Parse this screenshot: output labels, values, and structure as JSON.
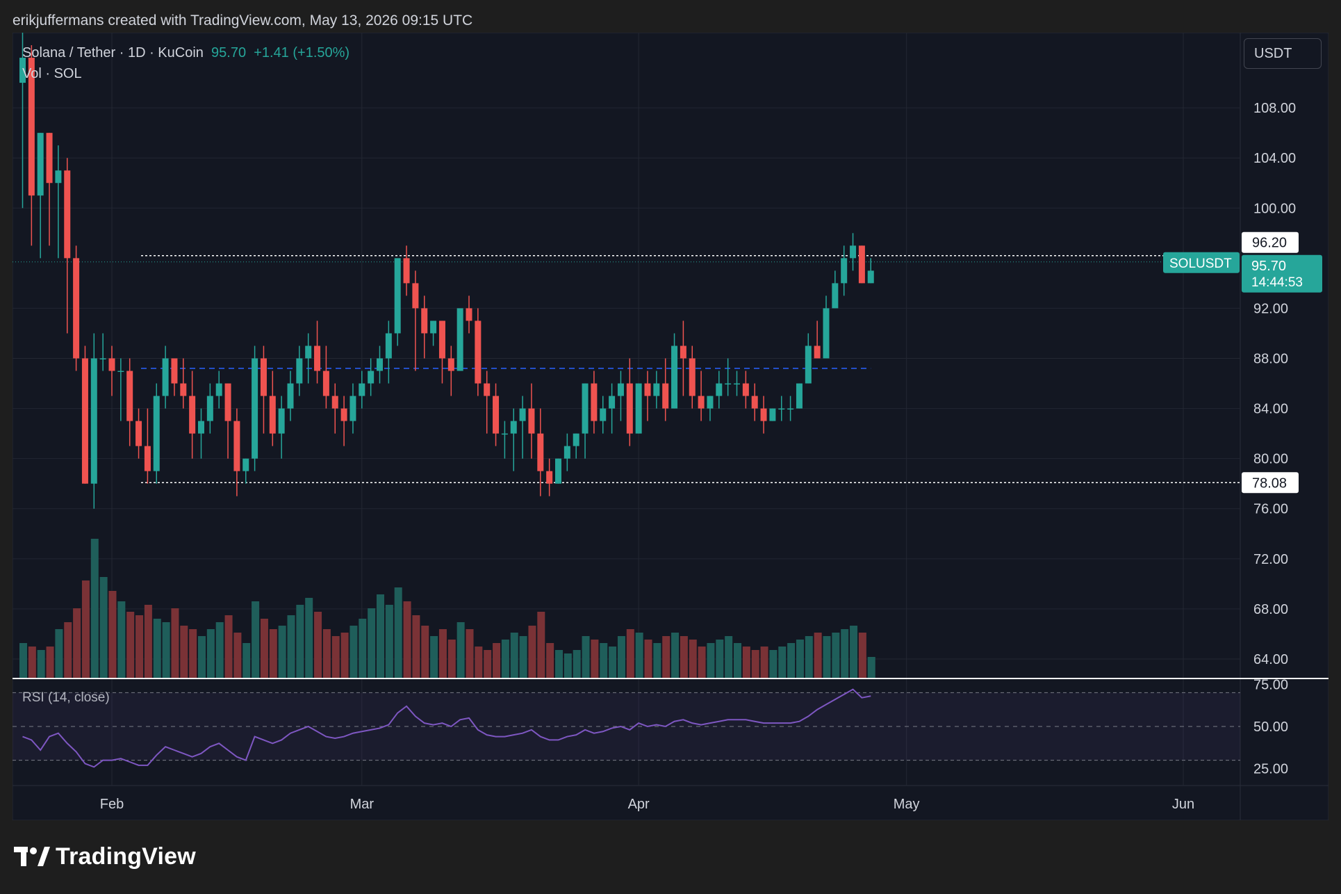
{
  "header": {
    "text": "erikjuffermans created with TradingView.com, May 13, 2026 09:15 UTC"
  },
  "legend": {
    "symbol_line": "Solana / Tether · 1D · KuCoin",
    "last_price": "95.70",
    "change": "+1.41 (+1.50%)",
    "volume_line": "Vol · SOL"
  },
  "currency_button": "USDT",
  "rsi_label": "RSI (14, close)",
  "footer": {
    "brand": "TradingView"
  },
  "colors": {
    "up": "#26a69a",
    "down": "#ef5350",
    "up_vol": "#1f5e5a",
    "down_vol": "#7a3236",
    "background": "#131722",
    "grid": "#232732",
    "rsi_line": "#7e57c2",
    "dashed_blue": "#2962ff"
  },
  "chart_data": {
    "type": "candlestick",
    "symbol": "SOLUSDT",
    "price_axis": {
      "range": [
        62.5,
        114
      ],
      "ticks": [
        108,
        104,
        100,
        92,
        88,
        84,
        80,
        76,
        72,
        68,
        64
      ]
    },
    "price_tick_labels": [
      "108.00",
      "104.00",
      "100.00",
      "92.00",
      "88.00",
      "84.00",
      "80.00",
      "76.00",
      "72.00",
      "68.00",
      "64.00"
    ],
    "time_labels": [
      {
        "label": "Feb",
        "index": 10
      },
      {
        "label": "Mar",
        "index": 38
      },
      {
        "label": "Apr",
        "index": 69
      },
      {
        "label": "May",
        "index": 99
      },
      {
        "label": "Jun",
        "index": 130
      }
    ],
    "annotations": {
      "upper_level": 96.2,
      "upper_level_label": "96.20",
      "lower_level": 78.08,
      "lower_level_label": "78.08",
      "mid_level": 87.2,
      "current_price": 95.7,
      "current_price_label": "95.70",
      "symbol_tag": "SOLUSDT",
      "countdown": "14:44:53"
    },
    "candles": [
      [
        110,
        116,
        112,
        100
      ],
      [
        112,
        113,
        101,
        97
      ],
      [
        101,
        106,
        106,
        96
      ],
      [
        106,
        106,
        102,
        97
      ],
      [
        102,
        105,
        103,
        96
      ],
      [
        103,
        104,
        96,
        90
      ],
      [
        96,
        97,
        88,
        87
      ],
      [
        88,
        89,
        78,
        78
      ],
      [
        78,
        90,
        88,
        76
      ],
      [
        88,
        90,
        88,
        87
      ],
      [
        88,
        89,
        87,
        85
      ],
      [
        87,
        88,
        87,
        83
      ],
      [
        87,
        88,
        83,
        81
      ],
      [
        83,
        84,
        81,
        80
      ],
      [
        81,
        84,
        79,
        78
      ],
      [
        79,
        86,
        85,
        78
      ],
      [
        85,
        89,
        88,
        84
      ],
      [
        88,
        88,
        86,
        85
      ],
      [
        86,
        88,
        85,
        84
      ],
      [
        85,
        87,
        82,
        80
      ],
      [
        82,
        84,
        83,
        80
      ],
      [
        83,
        86,
        85,
        82
      ],
      [
        85,
        87,
        86,
        84
      ],
      [
        86,
        86,
        83,
        80
      ],
      [
        83,
        84,
        79,
        77
      ],
      [
        79,
        80,
        80,
        78
      ],
      [
        80,
        89,
        88,
        79
      ],
      [
        88,
        89,
        85,
        82
      ],
      [
        85,
        87,
        82,
        81
      ],
      [
        82,
        85,
        84,
        80
      ],
      [
        84,
        87,
        86,
        83
      ],
      [
        86,
        89,
        88,
        85
      ],
      [
        88,
        90,
        89,
        86
      ],
      [
        89,
        91,
        87,
        86
      ],
      [
        87,
        89,
        85,
        84
      ],
      [
        85,
        86,
        84,
        82
      ],
      [
        84,
        85,
        83,
        81
      ],
      [
        83,
        86,
        85,
        82
      ],
      [
        85,
        87,
        86,
        84
      ],
      [
        86,
        88,
        87,
        85
      ],
      [
        87,
        89,
        88,
        86
      ],
      [
        88,
        91,
        90,
        86
      ],
      [
        90,
        93,
        96,
        89
      ],
      [
        96,
        97,
        94,
        93
      ],
      [
        94,
        95,
        92,
        87
      ],
      [
        92,
        93,
        90,
        88
      ],
      [
        90,
        91,
        91,
        89
      ],
      [
        91,
        91,
        88,
        86
      ],
      [
        88,
        89,
        87,
        85
      ],
      [
        87,
        91,
        92,
        87
      ],
      [
        92,
        93,
        91,
        90
      ],
      [
        91,
        92,
        86,
        85
      ],
      [
        86,
        87,
        85,
        82
      ],
      [
        85,
        86,
        82,
        81
      ],
      [
        82,
        83,
        82,
        80
      ],
      [
        82,
        84,
        83,
        79
      ],
      [
        83,
        85,
        84,
        80
      ],
      [
        84,
        86,
        82,
        80
      ],
      [
        82,
        84,
        79,
        77
      ],
      [
        79,
        80,
        78,
        77
      ],
      [
        78,
        80,
        80,
        78
      ],
      [
        80,
        82,
        81,
        79
      ],
      [
        81,
        82,
        82,
        80
      ],
      [
        82,
        86,
        86,
        80
      ],
      [
        86,
        87,
        83,
        82
      ],
      [
        83,
        85,
        84,
        82
      ],
      [
        84,
        86,
        85,
        82
      ],
      [
        85,
        87,
        86,
        83
      ],
      [
        86,
        88,
        82,
        81
      ],
      [
        82,
        86,
        86,
        82
      ],
      [
        86,
        87,
        85,
        83
      ],
      [
        85,
        87,
        86,
        84
      ],
      [
        86,
        88,
        84,
        83
      ],
      [
        84,
        90,
        89,
        84
      ],
      [
        89,
        91,
        88,
        85
      ],
      [
        88,
        89,
        85,
        84
      ],
      [
        85,
        87,
        84,
        83
      ],
      [
        84,
        85,
        85,
        83
      ],
      [
        85,
        87,
        86,
        84
      ],
      [
        86,
        88,
        86,
        85
      ],
      [
        86,
        87,
        86,
        85
      ],
      [
        86,
        87,
        85,
        84
      ],
      [
        85,
        86,
        84,
        83
      ],
      [
        84,
        85,
        83,
        82
      ],
      [
        83,
        84,
        84,
        83
      ],
      [
        84,
        85,
        84,
        83
      ],
      [
        84,
        85,
        84,
        83
      ],
      [
        84,
        86,
        86,
        84
      ],
      [
        86,
        90,
        89,
        86
      ],
      [
        89,
        91,
        88,
        88
      ],
      [
        88,
        93,
        92,
        88
      ],
      [
        92,
        95,
        94,
        92
      ],
      [
        94,
        97,
        96,
        93
      ],
      [
        96,
        98,
        97,
        95
      ],
      [
        97,
        97,
        94,
        94
      ],
      [
        94,
        96,
        95,
        94
      ]
    ],
    "volumes": [
      10,
      9,
      8,
      9,
      14,
      16,
      20,
      28,
      40,
      29,
      25,
      22,
      19,
      18,
      21,
      17,
      16,
      20,
      15,
      14,
      12,
      14,
      16,
      18,
      13,
      10,
      22,
      17,
      14,
      15,
      18,
      21,
      23,
      19,
      14,
      12,
      13,
      15,
      17,
      20,
      24,
      21,
      26,
      22,
      18,
      15,
      12,
      14,
      11,
      16,
      14,
      9,
      8,
      10,
      11,
      13,
      12,
      15,
      19,
      10,
      8,
      7,
      8,
      12,
      11,
      10,
      9,
      12,
      14,
      13,
      11,
      10,
      12,
      13,
      12,
      11,
      9,
      10,
      11,
      12,
      10,
      9,
      8,
      9,
      8,
      9,
      10,
      11,
      12,
      13,
      12,
      13,
      14,
      15,
      13,
      6
    ],
    "rsi": {
      "label": "RSI (14, close)",
      "range": [
        15,
        78
      ],
      "levels": [
        70,
        50,
        30
      ],
      "tick_labels": [
        "75.00",
        "50.00",
        "25.00"
      ],
      "values": [
        44,
        42,
        36,
        44,
        46,
        40,
        35,
        28,
        26,
        30,
        30,
        31,
        29,
        27,
        27,
        33,
        38,
        36,
        34,
        32,
        34,
        38,
        40,
        36,
        32,
        30,
        44,
        42,
        40,
        42,
        46,
        48,
        50,
        47,
        44,
        43,
        44,
        46,
        47,
        48,
        49,
        51,
        58,
        62,
        56,
        52,
        51,
        52,
        50,
        54,
        55,
        48,
        45,
        44,
        44,
        45,
        46,
        48,
        44,
        42,
        42,
        44,
        45,
        48,
        46,
        47,
        49,
        50,
        48,
        52,
        50,
        51,
        50,
        53,
        54,
        52,
        51,
        52,
        53,
        54,
        54,
        54,
        53,
        52,
        52,
        52,
        52,
        53,
        56,
        60,
        63,
        66,
        69,
        72,
        67,
        68
      ]
    }
  }
}
